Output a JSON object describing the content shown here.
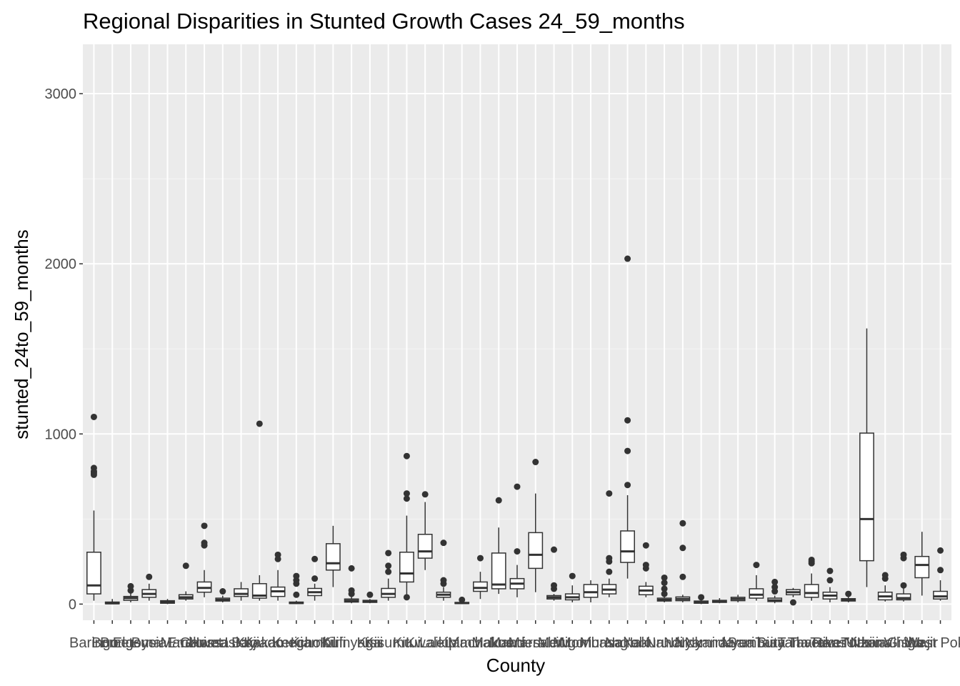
{
  "chart_data": {
    "type": "boxplot",
    "title": "Regional Disparities in Stunted Growth Cases 24_59_months",
    "xlabel": "County",
    "ylabel": "stunted_24to_59_months",
    "ylim": [
      -95,
      3290
    ],
    "yticks": [
      0,
      1000,
      2000,
      3000
    ],
    "grid": true,
    "legend": "none",
    "colors": {
      "panel": "#EBEBEB",
      "grid_major": "#FFFFFF",
      "grid_minor": "#F5F5F5",
      "box_fill": "#FFFFFF",
      "box_line": "#333333",
      "outlier": "#333333",
      "tick_text": "#4D4D4D"
    },
    "categories": [
      "Baringo",
      "Bomet",
      "Bungoma",
      "Busia",
      "Elgeyo Marakwet",
      "Embu",
      "Garissa",
      "Homa Bay",
      "Isiolo",
      "Kajiado",
      "Kakamega",
      "Kericho",
      "Kiambu",
      "Kilifi",
      "Kirinyaga",
      "Kisii",
      "Kisumu",
      "Kitui",
      "Kwale",
      "Laikipia",
      "Lamu",
      "Machakos",
      "Makueni",
      "Mandera",
      "Marsabit",
      "Meru",
      "Migori",
      "Mombasa",
      "Murang'a",
      "Nairobi",
      "Nakuru",
      "Nandi",
      "Narok",
      "Nyamira",
      "Nyandarua",
      "Nyeri",
      "Samburu",
      "Siaya",
      "Taita Taveta",
      "Tana River",
      "Tharaka Nithi",
      "Trans Nzoia",
      "Turkana",
      "Uasin Gishu",
      "Vihiga",
      "Wajir",
      "West Pokot"
    ],
    "boxes": [
      {
        "min": 20,
        "q1": 60,
        "median": 110,
        "q3": 305,
        "max": 550,
        "outliers": [
          1100,
          800,
          780,
          770,
          760
        ]
      },
      {
        "min": 0,
        "q1": 2,
        "median": 5,
        "q3": 12,
        "max": 30,
        "outliers": []
      },
      {
        "min": 10,
        "q1": 22,
        "median": 35,
        "q3": 45,
        "max": 70,
        "outliers": [
          80,
          105
        ]
      },
      {
        "min": 20,
        "q1": 40,
        "median": 60,
        "q3": 85,
        "max": 120,
        "outliers": [
          160
        ]
      },
      {
        "min": 0,
        "q1": 5,
        "median": 12,
        "q3": 20,
        "max": 30,
        "outliers": []
      },
      {
        "min": 20,
        "q1": 30,
        "median": 40,
        "q3": 55,
        "max": 75,
        "outliers": [
          225
        ]
      },
      {
        "min": 40,
        "q1": 70,
        "median": 95,
        "q3": 130,
        "max": 200,
        "outliers": [
          460,
          360,
          345
        ]
      },
      {
        "min": 10,
        "q1": 18,
        "median": 25,
        "q3": 35,
        "max": 50,
        "outliers": [
          75
        ]
      },
      {
        "min": 20,
        "q1": 45,
        "median": 60,
        "q3": 90,
        "max": 130,
        "outliers": []
      },
      {
        "min": 20,
        "q1": 35,
        "median": 50,
        "q3": 120,
        "max": 170,
        "outliers": [
          1060
        ]
      },
      {
        "min": 20,
        "q1": 45,
        "median": 75,
        "q3": 100,
        "max": 200,
        "outliers": [
          290,
          265
        ]
      },
      {
        "min": 0,
        "q1": 3,
        "median": 7,
        "q3": 12,
        "max": 20,
        "outliers": [
          55,
          120,
          140,
          165
        ]
      },
      {
        "min": 20,
        "q1": 50,
        "median": 70,
        "q3": 92,
        "max": 120,
        "outliers": [
          150,
          265
        ]
      },
      {
        "min": 100,
        "q1": 200,
        "median": 240,
        "q3": 355,
        "max": 460,
        "outliers": []
      },
      {
        "min": 5,
        "q1": 12,
        "median": 20,
        "q3": 30,
        "max": 45,
        "outliers": [
          60,
          80,
          210
        ]
      },
      {
        "min": 5,
        "q1": 10,
        "median": 15,
        "q3": 22,
        "max": 30,
        "outliers": [
          55
        ]
      },
      {
        "min": 20,
        "q1": 40,
        "median": 60,
        "q3": 92,
        "max": 150,
        "outliers": [
          190,
          225,
          300
        ]
      },
      {
        "min": 40,
        "q1": 130,
        "median": 180,
        "q3": 305,
        "max": 520,
        "outliers": [
          40,
          620,
          650,
          870
        ]
      },
      {
        "min": 200,
        "q1": 270,
        "median": 310,
        "q3": 410,
        "max": 600,
        "outliers": [
          645
        ]
      },
      {
        "min": 20,
        "q1": 40,
        "median": 55,
        "q3": 70,
        "max": 100,
        "outliers": [
          120,
          140,
          360
        ]
      },
      {
        "min": 0,
        "q1": 3,
        "median": 6,
        "q3": 10,
        "max": 20,
        "outliers": [
          25
        ]
      },
      {
        "min": 30,
        "q1": 75,
        "median": 95,
        "q3": 130,
        "max": 190,
        "outliers": [
          270
        ]
      },
      {
        "min": 60,
        "q1": 90,
        "median": 115,
        "q3": 300,
        "max": 450,
        "outliers": [
          610
        ]
      },
      {
        "min": 40,
        "q1": 90,
        "median": 120,
        "q3": 150,
        "max": 230,
        "outliers": [
          310,
          690
        ]
      },
      {
        "min": 70,
        "q1": 210,
        "median": 290,
        "q3": 420,
        "max": 650,
        "outliers": [
          835
        ]
      },
      {
        "min": 20,
        "q1": 30,
        "median": 40,
        "q3": 50,
        "max": 60,
        "outliers": [
          90,
          110,
          320
        ]
      },
      {
        "min": 10,
        "q1": 25,
        "median": 40,
        "q3": 60,
        "max": 110,
        "outliers": [
          165
        ]
      },
      {
        "min": 10,
        "q1": 40,
        "median": 70,
        "q3": 115,
        "max": 140,
        "outliers": []
      },
      {
        "min": 40,
        "q1": 60,
        "median": 85,
        "q3": 115,
        "max": 150,
        "outliers": [
          190,
          250,
          270,
          650
        ]
      },
      {
        "min": 150,
        "q1": 245,
        "median": 310,
        "q3": 430,
        "max": 640,
        "outliers": [
          700,
          900,
          1080,
          2030
        ]
      },
      {
        "min": 40,
        "q1": 55,
        "median": 80,
        "q3": 105,
        "max": 130,
        "outliers": [
          210,
          230,
          345
        ]
      },
      {
        "min": 10,
        "q1": 18,
        "median": 25,
        "q3": 35,
        "max": 50,
        "outliers": [
          60,
          90,
          125,
          155
        ]
      },
      {
        "min": 10,
        "q1": 20,
        "median": 30,
        "q3": 42,
        "max": 55,
        "outliers": [
          160,
          330,
          475
        ]
      },
      {
        "min": 0,
        "q1": 5,
        "median": 10,
        "q3": 18,
        "max": 30,
        "outliers": [
          40
        ]
      },
      {
        "min": 5,
        "q1": 10,
        "median": 15,
        "q3": 22,
        "max": 35,
        "outliers": []
      },
      {
        "min": 10,
        "q1": 20,
        "median": 30,
        "q3": 40,
        "max": 55,
        "outliers": []
      },
      {
        "min": 20,
        "q1": 35,
        "median": 55,
        "q3": 90,
        "max": 170,
        "outliers": [
          230
        ]
      },
      {
        "min": 5,
        "q1": 15,
        "median": 22,
        "q3": 35,
        "max": 50,
        "outliers": [
          75,
          100,
          130
        ]
      },
      {
        "min": 40,
        "q1": 55,
        "median": 70,
        "q3": 85,
        "max": 95,
        "outliers": [
          10
        ]
      },
      {
        "min": 20,
        "q1": 40,
        "median": 65,
        "q3": 115,
        "max": 180,
        "outliers": [
          240,
          260,
          250
        ]
      },
      {
        "min": 10,
        "q1": 30,
        "median": 50,
        "q3": 70,
        "max": 100,
        "outliers": [
          140,
          195
        ]
      },
      {
        "min": 10,
        "q1": 18,
        "median": 25,
        "q3": 32,
        "max": 45,
        "outliers": [
          60
        ]
      },
      {
        "min": 100,
        "q1": 255,
        "median": 500,
        "q3": 1005,
        "max": 1620,
        "outliers": []
      },
      {
        "min": 15,
        "q1": 25,
        "median": 45,
        "q3": 70,
        "max": 110,
        "outliers": [
          150,
          170
        ]
      },
      {
        "min": 15,
        "q1": 25,
        "median": 35,
        "q3": 60,
        "max": 100,
        "outliers": [
          110,
          270,
          290
        ]
      },
      {
        "min": 50,
        "q1": 155,
        "median": 230,
        "q3": 280,
        "max": 425,
        "outliers": []
      },
      {
        "min": 20,
        "q1": 30,
        "median": 45,
        "q3": 75,
        "max": 140,
        "outliers": [
          200,
          315
        ]
      }
    ]
  }
}
